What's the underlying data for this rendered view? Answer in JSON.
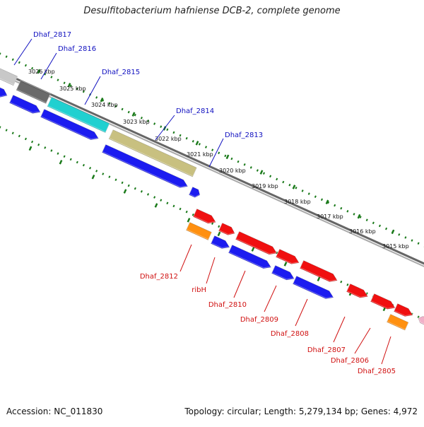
{
  "title": "Desulfitobacterium hafniense DCB-2, complete genome",
  "footer": {
    "accession": "Accession: NC_011830",
    "topology": "Topology: circular; Length: 5,279,134 bp; Genes: 4,972"
  },
  "colors": {
    "forward": "#1c1cf0",
    "reverse": "#f01010",
    "orange": "#ff9010",
    "cyan": "#20d0d0",
    "olive": "#c8c080",
    "dark": "#6a6a6a",
    "light": "#c8c8c8",
    "pink": "#f0b0c8",
    "tick": "#1a7a1a",
    "backbone": "#808080",
    "label_top": "#1010c0",
    "label_bottom": "#d01010"
  },
  "kbp_labels": [
    "3026 kbp",
    "3025 kbp",
    "3024 kbp",
    "3023 kbp",
    "3022 kbp",
    "3021 kbp",
    "3020 kbp",
    "3019 kbp",
    "3018 kbp",
    "3017 kbp",
    "3016 kbp",
    "3015 kbp"
  ],
  "top_genes": [
    "Dhaf_2817",
    "Dhaf_2816",
    "Dhaf_2815",
    "Dhaf_2814",
    "Dhaf_2813"
  ],
  "bottom_genes": [
    "Dhaf_2812",
    "ribH",
    "Dhaf_2810",
    "Dhaf_2809",
    "Dhaf_2808",
    "Dhaf_2807",
    "Dhaf_2806",
    "Dhaf_2805"
  ]
}
